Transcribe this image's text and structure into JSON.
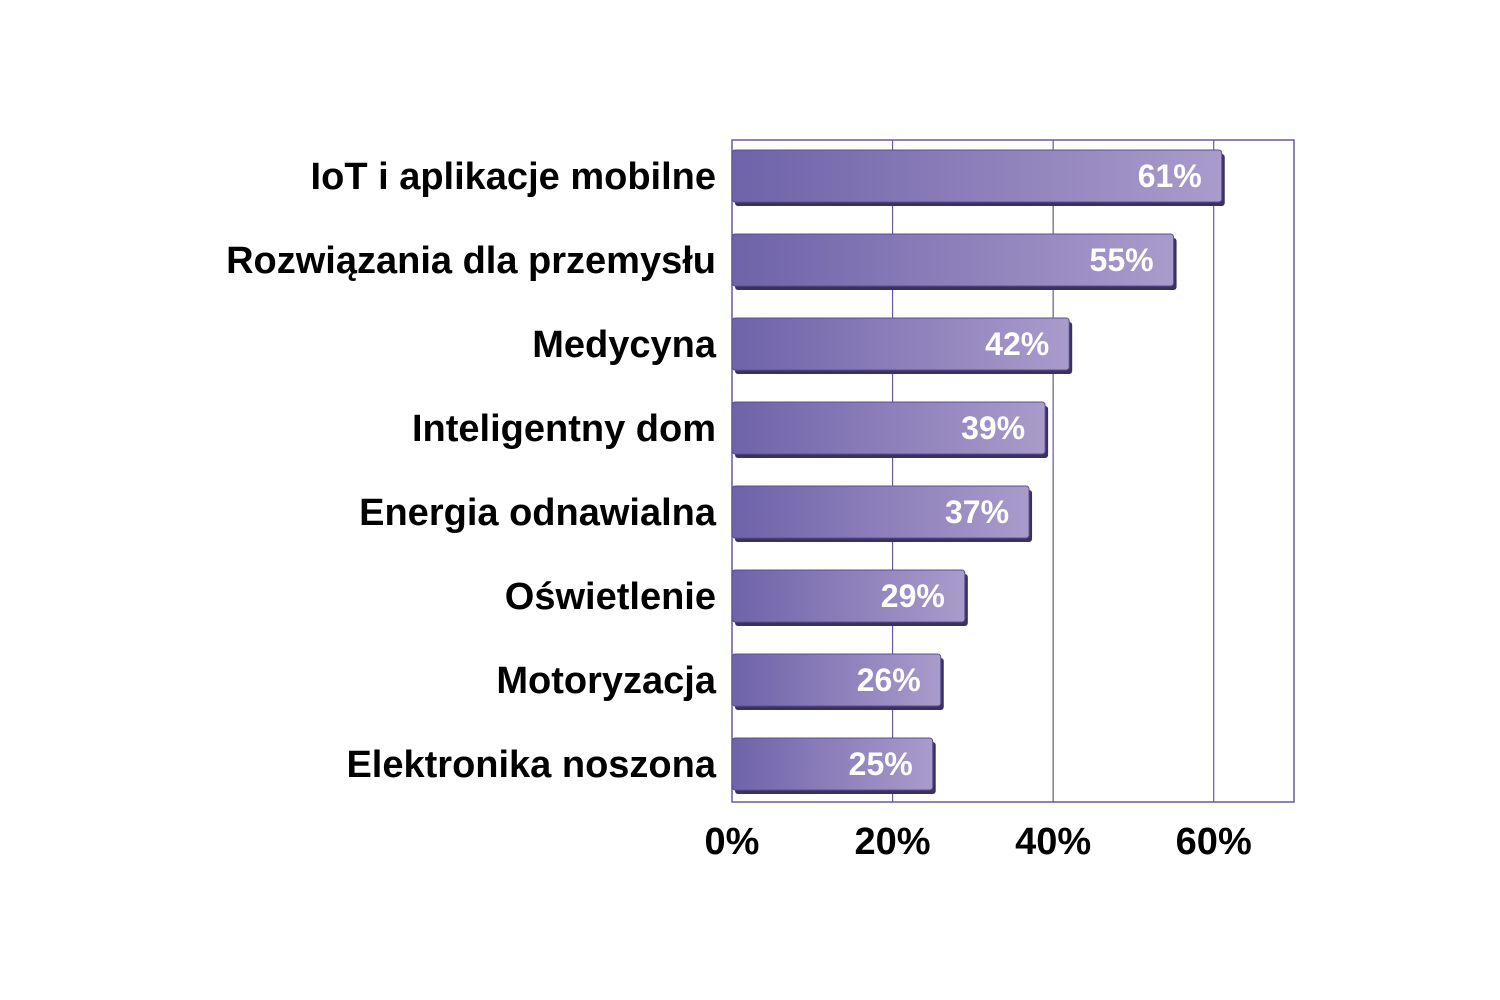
{
  "chart_data": {
    "type": "bar",
    "orientation": "horizontal",
    "categories": [
      "IoT i aplikacje mobilne",
      "Rozwiązania dla przemysłu",
      "Medycyna",
      "Inteligentny dom",
      "Energia odnawialna",
      "Oświetlenie",
      "Motoryzacja",
      "Elektronika noszona"
    ],
    "values": [
      61,
      55,
      42,
      39,
      37,
      29,
      26,
      25
    ],
    "data_labels": [
      "61%",
      "55%",
      "42%",
      "39%",
      "37%",
      "29%",
      "26%",
      "25%"
    ],
    "title": "",
    "xlabel": "",
    "ylabel": "",
    "xlim": [
      0,
      70
    ],
    "ticks": [
      0,
      20,
      40,
      60
    ],
    "tick_labels": [
      "0%",
      "20%",
      "40%",
      "60%"
    ],
    "grid": true,
    "legend": "none",
    "colors": {
      "bar_start": "#6f63a9",
      "bar_end": "#a99bcb",
      "bar_shadow": "#3b3160",
      "gridline": "#6b5a9a",
      "plot_border": "#6b5a9a",
      "plot_background": "#ffffff"
    }
  }
}
